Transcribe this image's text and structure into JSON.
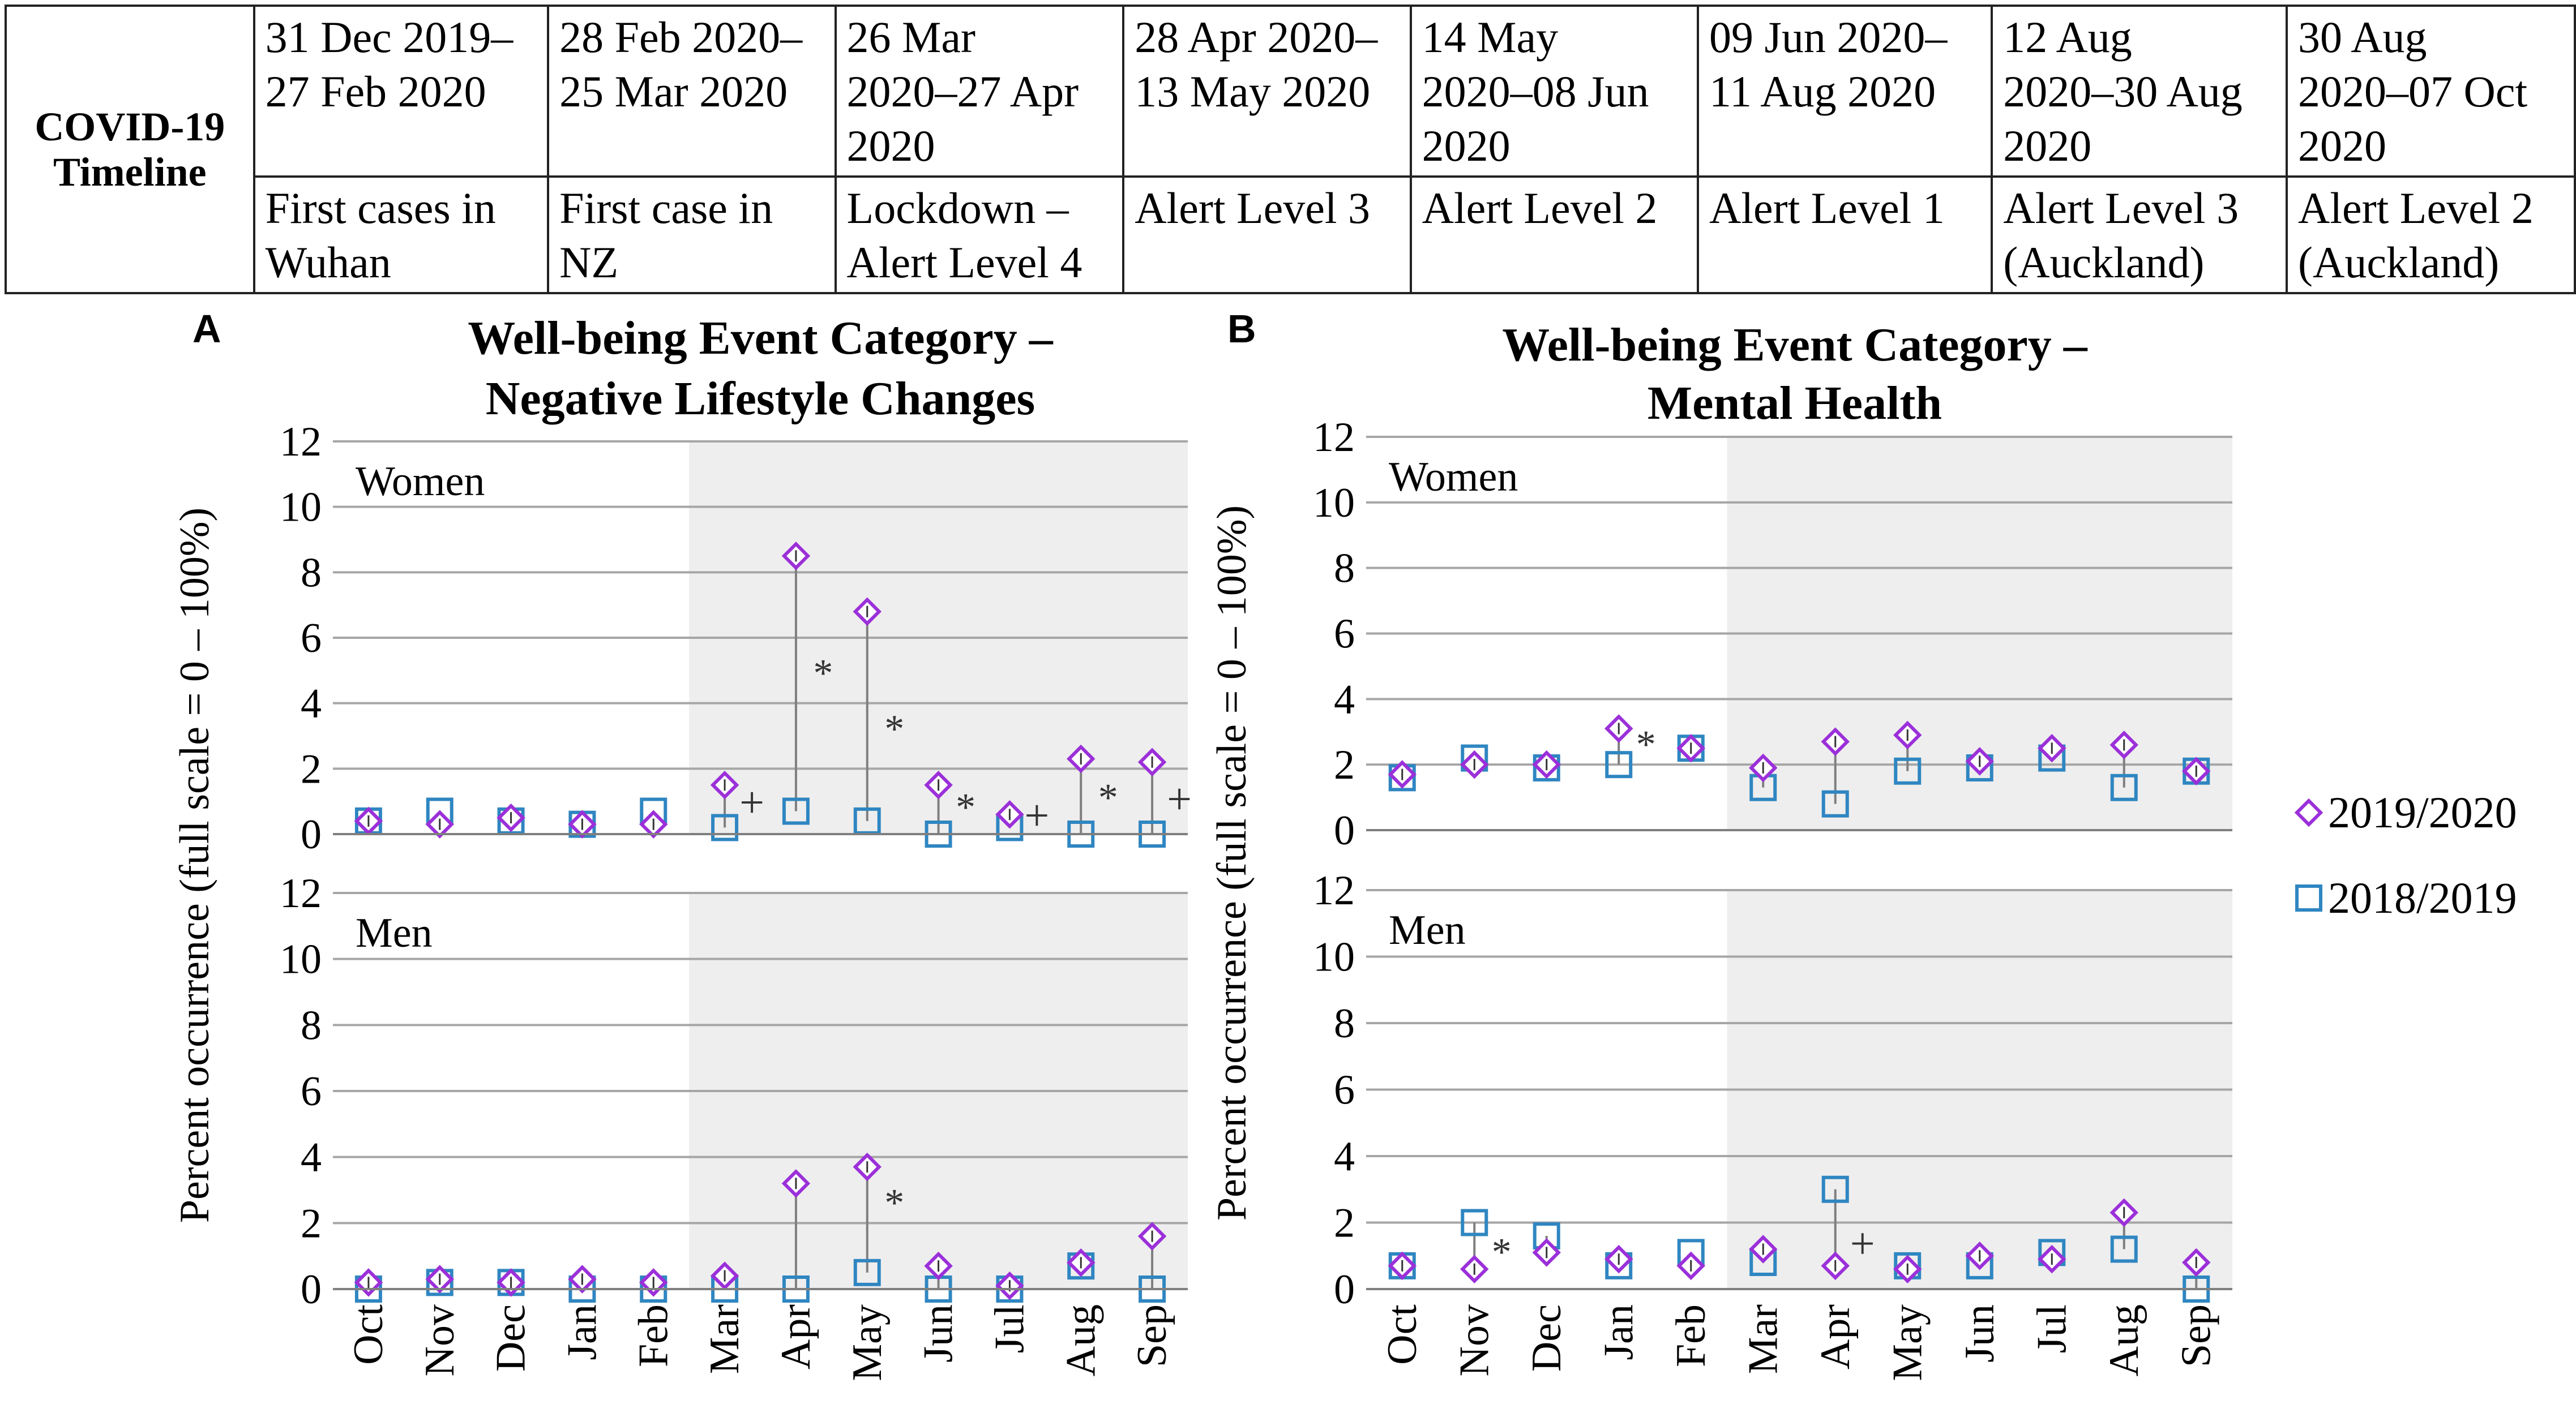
{
  "timeline": {
    "label": [
      "COVID-19",
      "Timeline"
    ],
    "periods": [
      {
        "range": [
          "31 Dec 2019–",
          "27 Feb 2020"
        ],
        "event": [
          "First cases in",
          "Wuhan"
        ]
      },
      {
        "range": [
          "28 Feb 2020–",
          "25 Mar 2020"
        ],
        "event": [
          "First case in",
          "NZ"
        ]
      },
      {
        "range": [
          "26 Mar",
          "2020–27 Apr",
          "2020"
        ],
        "event": [
          "Lockdown –",
          "Alert Level 4"
        ]
      },
      {
        "range": [
          "28 Apr 2020–",
          "13 May 2020"
        ],
        "event": [
          "Alert Level 3"
        ]
      },
      {
        "range": [
          "14 May",
          "2020–08 Jun",
          "2020"
        ],
        "event": [
          "Alert Level 2"
        ]
      },
      {
        "range": [
          "09 Jun 2020–",
          "11 Aug 2020"
        ],
        "event": [
          "Alert Level 1"
        ]
      },
      {
        "range": [
          "12 Aug",
          "2020–30 Aug",
          "2020"
        ],
        "event": [
          "Alert Level 3",
          "(Auckland)"
        ]
      },
      {
        "range": [
          "30 Aug",
          "2020–07 Oct",
          "2020"
        ],
        "event": [
          "Alert Level 2",
          "(Auckland)"
        ]
      }
    ]
  },
  "legend": [
    {
      "label": "2019/2020",
      "marker": "diamond",
      "color": "#9b30d9"
    },
    {
      "label": "2018/2019",
      "marker": "square",
      "color": "#2f86c1"
    }
  ],
  "colors": {
    "series_2019_2020": "#9b30d9",
    "series_2018_2019": "#2f86c1",
    "shade": "#eeeeee",
    "grid": "#a6a6a6",
    "link": "#7f7f7f"
  },
  "chart_data": [
    {
      "panel": "A",
      "type": "scatter",
      "title": [
        "Well-being Event Category –",
        "Negative Lifestyle Changes"
      ],
      "ylabel": "Percent occurrence (full scale = 0 – 100%)",
      "categories": [
        "Oct",
        "Nov",
        "Dec",
        "Jan",
        "Feb",
        "Mar",
        "Apr",
        "May",
        "Jun",
        "Jul",
        "Aug",
        "Sep"
      ],
      "ylim": [
        0,
        12
      ],
      "yticks": [
        0,
        2,
        4,
        6,
        8,
        10,
        12
      ],
      "shaded_from_category": "Mar",
      "subplots": [
        {
          "label": "Women",
          "series": [
            {
              "name": "2019/2020",
              "values": [
                0.4,
                0.3,
                0.5,
                0.3,
                0.3,
                1.5,
                8.5,
                6.8,
                1.5,
                0.6,
                2.3,
                2.2
              ]
            },
            {
              "name": "2018/2019",
              "values": [
                0.4,
                0.7,
                0.4,
                0.3,
                0.7,
                0.2,
                0.7,
                0.4,
                0.0,
                0.2,
                0.0,
                0.0
              ]
            }
          ],
          "annotations": [
            {
              "category": "Mar",
              "y": 0.9,
              "symbol": "+"
            },
            {
              "category": "Apr",
              "y": 4.9,
              "symbol": "*"
            },
            {
              "category": "May",
              "y": 3.2,
              "symbol": "*"
            },
            {
              "category": "Jun",
              "y": 0.8,
              "symbol": "*"
            },
            {
              "category": "Jul",
              "y": 0.5,
              "symbol": "+"
            },
            {
              "category": "Aug",
              "y": 1.1,
              "symbol": "*"
            },
            {
              "category": "Sep",
              "y": 1.0,
              "symbol": "+"
            }
          ]
        },
        {
          "label": "Men",
          "series": [
            {
              "name": "2019/2020",
              "values": [
                0.2,
                0.3,
                0.2,
                0.3,
                0.2,
                0.4,
                3.2,
                3.7,
                0.7,
                0.1,
                0.8,
                1.6
              ]
            },
            {
              "name": "2018/2019",
              "values": [
                0.0,
                0.2,
                0.2,
                0.0,
                0.0,
                0.0,
                0.0,
                0.5,
                0.0,
                0.0,
                0.7,
                0.0
              ]
            }
          ],
          "annotations": [
            {
              "category": "May",
              "y": 2.6,
              "symbol": "*"
            }
          ]
        }
      ]
    },
    {
      "panel": "B",
      "type": "scatter",
      "title": [
        "Well-being Event Category –",
        "Mental Health"
      ],
      "ylabel": "Percent occurrence (full scale = 0 – 100%)",
      "categories": [
        "Oct",
        "Nov",
        "Dec",
        "Jan",
        "Feb",
        "Mar",
        "Apr",
        "May",
        "Jun",
        "Jul",
        "Aug",
        "Sep"
      ],
      "ylim": [
        0,
        12
      ],
      "yticks": [
        0,
        2,
        4,
        6,
        8,
        10,
        12
      ],
      "shaded_from_category": "Mar",
      "subplots": [
        {
          "label": "Women",
          "series": [
            {
              "name": "2019/2020",
              "values": [
                1.7,
                2.0,
                2.0,
                3.1,
                2.5,
                1.9,
                2.7,
                2.9,
                2.1,
                2.5,
                2.6,
                1.8
              ]
            },
            {
              "name": "2018/2019",
              "values": [
                1.6,
                2.2,
                1.9,
                2.0,
                2.5,
                1.3,
                0.8,
                1.8,
                1.9,
                2.2,
                1.3,
                1.8
              ]
            }
          ],
          "annotations": [
            {
              "category": "Jan",
              "y": 2.6,
              "symbol": "*"
            }
          ]
        },
        {
          "label": "Men",
          "series": [
            {
              "name": "2019/2020",
              "values": [
                0.7,
                0.6,
                1.1,
                0.9,
                0.7,
                1.2,
                0.7,
                0.6,
                1.0,
                0.9,
                2.3,
                0.8
              ]
            },
            {
              "name": "2018/2019",
              "values": [
                0.7,
                2.0,
                1.6,
                0.7,
                1.1,
                0.8,
                3.0,
                0.7,
                0.7,
                1.1,
                1.2,
                0.0
              ]
            }
          ],
          "annotations": [
            {
              "category": "Nov",
              "y": 1.1,
              "symbol": "*"
            },
            {
              "category": "Apr",
              "y": 1.3,
              "symbol": "+"
            }
          ]
        }
      ]
    }
  ]
}
